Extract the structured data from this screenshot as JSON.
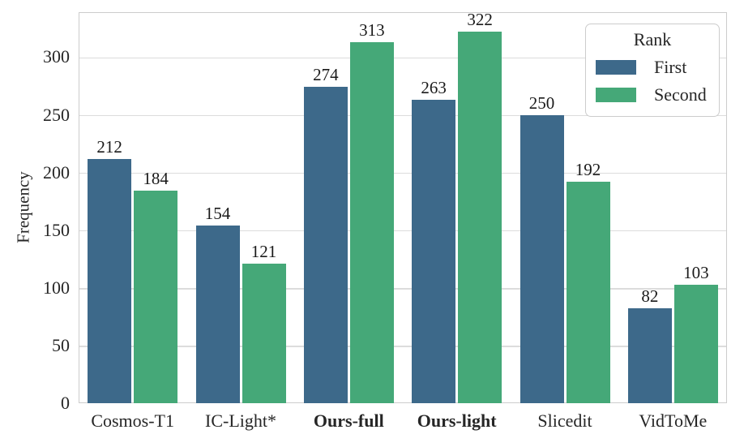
{
  "chart_data": {
    "type": "bar",
    "title": "",
    "xlabel": "",
    "ylabel": "Frequency",
    "categories": [
      {
        "label": "Cosmos-T1",
        "bold": false
      },
      {
        "label": "IC-Light*",
        "bold": false
      },
      {
        "label": "Ours-full",
        "bold": true
      },
      {
        "label": "Ours-light",
        "bold": true
      },
      {
        "label": "Slicedit",
        "bold": false
      },
      {
        "label": "VidToMe",
        "bold": false
      }
    ],
    "series": [
      {
        "name": "First",
        "color": "#3d698a",
        "values": [
          212,
          154,
          274,
          263,
          250,
          82
        ]
      },
      {
        "name": "Second",
        "color": "#45a878",
        "values": [
          184,
          121,
          313,
          322,
          192,
          103
        ]
      }
    ],
    "yticks": [
      0,
      50,
      100,
      150,
      200,
      250,
      300
    ],
    "ylim": [
      0,
      339
    ],
    "grid": true,
    "value_labels": true,
    "legend": {
      "title": "Rank",
      "position": "upper-right"
    }
  },
  "style": {
    "grid_color": "#dcdcdc",
    "spine_color": "#cccccc",
    "text_color": "#262626",
    "background": "#ffffff"
  }
}
